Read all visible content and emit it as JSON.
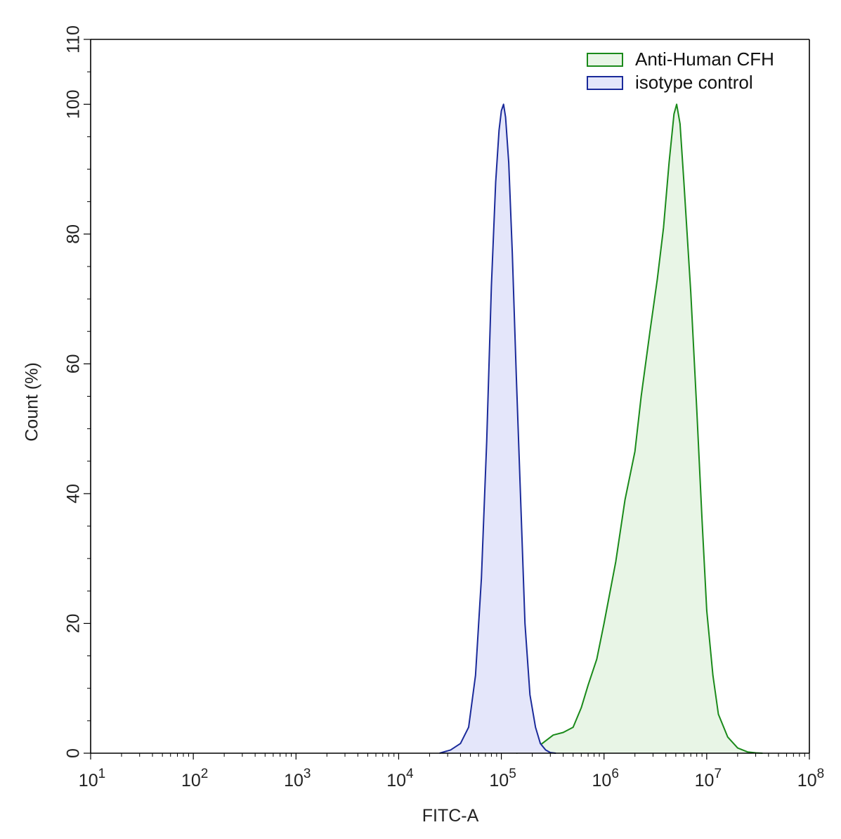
{
  "chart_data": {
    "type": "area",
    "title": "",
    "xlabel": "FITC-A",
    "ylabel": "Count  (%)",
    "xscale": "log",
    "xlim": [
      10,
      100000000
    ],
    "ylim": [
      0,
      110
    ],
    "xticks": [
      {
        "value": 10,
        "base": "10",
        "exp": "1"
      },
      {
        "value": 100,
        "base": "10",
        "exp": "2"
      },
      {
        "value": 1000,
        "base": "10",
        "exp": "3"
      },
      {
        "value": 10000,
        "base": "10",
        "exp": "4"
      },
      {
        "value": 100000,
        "base": "10",
        "exp": "5"
      },
      {
        "value": 1000000,
        "base": "10",
        "exp": "6"
      },
      {
        "value": 10000000,
        "base": "10",
        "exp": "7"
      },
      {
        "value": 100000000,
        "base": "10",
        "exp": "8"
      }
    ],
    "yticks": [
      "0",
      "20",
      "40",
      "60",
      "80",
      "100",
      "110"
    ],
    "grid": false,
    "legend_position": "top-right",
    "series": [
      {
        "name": "Anti-Human CFH",
        "stroke": "#1a8a1a",
        "fill": "#e8f5e6",
        "x": [
          140000,
          180000,
          250000,
          320000,
          400000,
          500000,
          600000,
          700000,
          850000,
          1000000,
          1300000,
          1600000,
          2000000,
          2300000,
          2800000,
          3300000,
          3800000,
          4300000,
          4800000,
          5100000,
          5500000,
          6000000,
          7000000,
          8000000,
          9000000,
          10000000,
          11500000,
          13000000,
          16000000,
          20000000,
          25000000,
          30000000,
          35000000
        ],
        "y": [
          0,
          0.5,
          1.5,
          2.8,
          3.2,
          4,
          7,
          10.5,
          14.5,
          20,
          29.5,
          39,
          46.5,
          55,
          65,
          73,
          81,
          91,
          98.5,
          100,
          97,
          88,
          71,
          53,
          36,
          22,
          12,
          6,
          2.5,
          0.8,
          0.2,
          0.05,
          0
        ]
      },
      {
        "name": "isotype control",
        "stroke": "#1a2a9a",
        "fill": "#e4e6fa",
        "x": [
          25000,
          32000,
          40000,
          48000,
          56000,
          64000,
          72000,
          80000,
          88000,
          95000,
          100000,
          105000,
          110000,
          118000,
          128000,
          140000,
          155000,
          170000,
          190000,
          215000,
          240000,
          270000,
          300000,
          340000
        ],
        "y": [
          0,
          0.5,
          1.5,
          4,
          12,
          27,
          48,
          72,
          88,
          96,
          99,
          100,
          98,
          91,
          77,
          58,
          38,
          20,
          9,
          4,
          1.5,
          0.5,
          0.1,
          0
        ]
      }
    ]
  }
}
